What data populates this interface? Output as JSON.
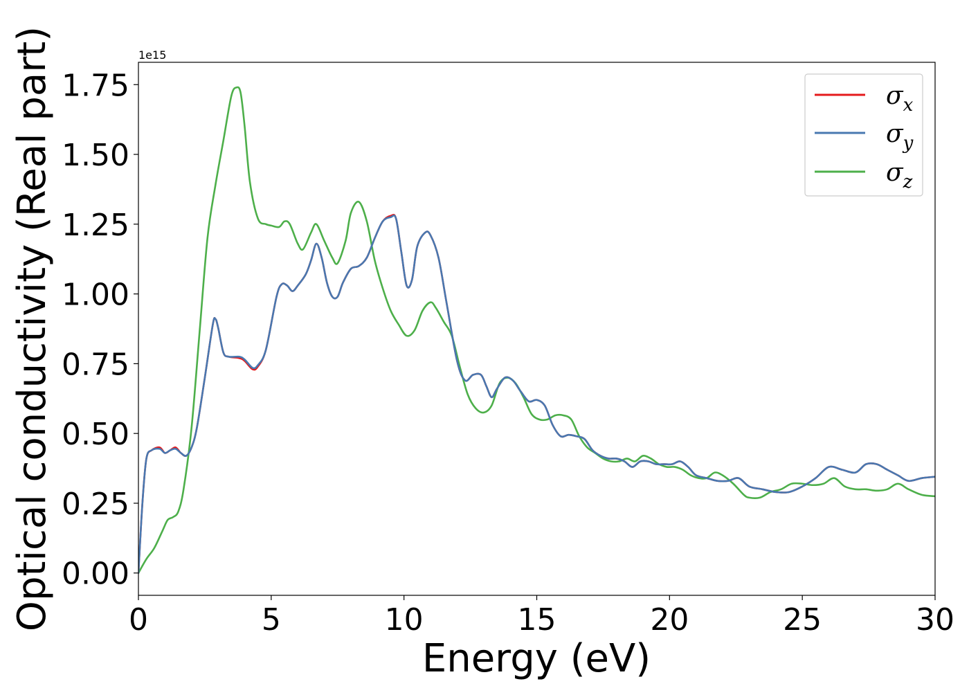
{
  "chart_data": {
    "type": "line",
    "xlabel": "Energy (eV)",
    "ylabel": "Optical conductivity (Real part)",
    "offset_text": "1e15",
    "xlim": [
      0,
      30
    ],
    "ylim": [
      -0.08,
      1.83
    ],
    "xticks": [
      0,
      5,
      10,
      15,
      20,
      25,
      30
    ],
    "xtick_labels": [
      "0",
      "5",
      "10",
      "15",
      "20",
      "25",
      "30"
    ],
    "yticks": [
      0.0,
      0.25,
      0.5,
      0.75,
      1.0,
      1.25,
      1.5,
      1.75
    ],
    "ytick_labels": [
      "0.00",
      "0.25",
      "0.50",
      "0.75",
      "1.00",
      "1.25",
      "1.50",
      "1.75"
    ],
    "grid": false,
    "legend_position": "top-right",
    "series": [
      {
        "name": "σx",
        "color": "#e41a1c",
        "x": [
          0,
          0.15,
          0.3,
          0.5,
          0.8,
          1.0,
          1.2,
          1.4,
          1.6,
          1.8,
          2.0,
          2.2,
          2.5,
          2.8,
          2.9,
          3.0,
          3.2,
          3.4,
          3.8,
          4.0,
          4.3,
          4.5,
          4.8,
          5.2,
          5.4,
          5.6,
          5.8,
          6.0,
          6.3,
          6.5,
          6.7,
          6.9,
          7.1,
          7.3,
          7.5,
          7.7,
          8.0,
          8.3,
          8.6,
          8.9,
          9.2,
          9.5,
          9.7,
          9.9,
          10.1,
          10.3,
          10.5,
          10.8,
          11.0,
          11.3,
          11.6,
          12.0,
          12.3,
          12.6,
          12.9,
          13.1,
          13.3,
          13.5,
          13.8,
          14.1,
          14.4,
          14.7,
          15.0,
          15.3,
          15.6,
          15.9,
          16.2,
          16.5,
          16.8,
          17.1,
          17.4,
          17.7,
          18.0,
          18.3,
          18.6,
          18.9,
          19.2,
          19.5,
          19.8,
          20.1,
          20.4,
          20.7,
          21.0,
          21.4,
          21.8,
          22.2,
          22.6,
          23.0,
          23.5,
          24.0,
          24.5,
          25.0,
          25.5,
          26.0,
          26.5,
          27.0,
          27.4,
          27.8,
          28.2,
          28.6,
          29.0,
          29.5,
          30.0
        ],
        "y": [
          0.0,
          0.25,
          0.41,
          0.44,
          0.45,
          0.43,
          0.44,
          0.45,
          0.43,
          0.42,
          0.45,
          0.52,
          0.7,
          0.89,
          0.91,
          0.88,
          0.79,
          0.775,
          0.77,
          0.76,
          0.73,
          0.74,
          0.8,
          0.99,
          1.035,
          1.03,
          1.01,
          1.03,
          1.07,
          1.12,
          1.18,
          1.13,
          1.04,
          0.99,
          0.99,
          1.04,
          1.09,
          1.1,
          1.13,
          1.2,
          1.26,
          1.28,
          1.27,
          1.15,
          1.03,
          1.05,
          1.17,
          1.22,
          1.21,
          1.13,
          0.97,
          0.76,
          0.69,
          0.71,
          0.71,
          0.67,
          0.63,
          0.66,
          0.7,
          0.69,
          0.65,
          0.615,
          0.62,
          0.6,
          0.53,
          0.49,
          0.495,
          0.49,
          0.48,
          0.44,
          0.42,
          0.41,
          0.41,
          0.4,
          0.38,
          0.4,
          0.4,
          0.39,
          0.39,
          0.39,
          0.4,
          0.38,
          0.35,
          0.34,
          0.33,
          0.33,
          0.34,
          0.31,
          0.3,
          0.29,
          0.29,
          0.31,
          0.34,
          0.38,
          0.37,
          0.36,
          0.39,
          0.39,
          0.37,
          0.35,
          0.33,
          0.34,
          0.345
        ]
      },
      {
        "name": "σy",
        "color": "#4878b0",
        "x": [
          0,
          0.15,
          0.3,
          0.5,
          0.8,
          1.0,
          1.2,
          1.4,
          1.6,
          1.8,
          2.0,
          2.2,
          2.5,
          2.8,
          2.9,
          3.0,
          3.2,
          3.4,
          3.8,
          4.0,
          4.3,
          4.5,
          4.8,
          5.2,
          5.4,
          5.6,
          5.8,
          6.0,
          6.3,
          6.5,
          6.7,
          6.9,
          7.1,
          7.3,
          7.5,
          7.7,
          8.0,
          8.3,
          8.6,
          8.9,
          9.2,
          9.5,
          9.7,
          9.9,
          10.1,
          10.3,
          10.5,
          10.8,
          11.0,
          11.3,
          11.6,
          12.0,
          12.3,
          12.6,
          12.9,
          13.1,
          13.3,
          13.5,
          13.8,
          14.1,
          14.4,
          14.7,
          15.0,
          15.3,
          15.6,
          15.9,
          16.2,
          16.5,
          16.8,
          17.1,
          17.4,
          17.7,
          18.0,
          18.3,
          18.6,
          18.9,
          19.2,
          19.5,
          19.8,
          20.1,
          20.4,
          20.7,
          21.0,
          21.4,
          21.8,
          22.2,
          22.6,
          23.0,
          23.5,
          24.0,
          24.5,
          25.0,
          25.5,
          26.0,
          26.5,
          27.0,
          27.4,
          27.8,
          28.2,
          28.6,
          29.0,
          29.5,
          30.0
        ],
        "y": [
          0.0,
          0.25,
          0.41,
          0.44,
          0.445,
          0.43,
          0.44,
          0.445,
          0.43,
          0.42,
          0.45,
          0.52,
          0.7,
          0.89,
          0.91,
          0.88,
          0.79,
          0.775,
          0.775,
          0.765,
          0.735,
          0.745,
          0.8,
          0.99,
          1.035,
          1.03,
          1.01,
          1.03,
          1.07,
          1.12,
          1.18,
          1.13,
          1.04,
          0.99,
          0.99,
          1.04,
          1.09,
          1.1,
          1.13,
          1.2,
          1.26,
          1.275,
          1.27,
          1.15,
          1.03,
          1.05,
          1.17,
          1.22,
          1.21,
          1.13,
          0.97,
          0.76,
          0.69,
          0.71,
          0.71,
          0.67,
          0.63,
          0.66,
          0.7,
          0.69,
          0.65,
          0.615,
          0.62,
          0.6,
          0.53,
          0.49,
          0.495,
          0.49,
          0.48,
          0.44,
          0.42,
          0.41,
          0.41,
          0.4,
          0.38,
          0.4,
          0.4,
          0.39,
          0.39,
          0.39,
          0.4,
          0.38,
          0.35,
          0.34,
          0.33,
          0.33,
          0.34,
          0.31,
          0.3,
          0.29,
          0.29,
          0.31,
          0.34,
          0.38,
          0.37,
          0.36,
          0.39,
          0.39,
          0.37,
          0.35,
          0.33,
          0.34,
          0.345
        ]
      },
      {
        "name": "σz",
        "color": "#4daf4a",
        "x": [
          0,
          0.3,
          0.6,
          0.9,
          1.1,
          1.3,
          1.5,
          1.7,
          2.0,
          2.3,
          2.6,
          2.9,
          3.2,
          3.5,
          3.7,
          3.85,
          4.0,
          4.2,
          4.5,
          4.8,
          5.0,
          5.3,
          5.5,
          5.7,
          6.0,
          6.2,
          6.5,
          6.7,
          7.0,
          7.3,
          7.5,
          7.8,
          8.0,
          8.3,
          8.6,
          8.9,
          9.2,
          9.5,
          9.8,
          10.1,
          10.4,
          10.7,
          11.0,
          11.2,
          11.5,
          11.8,
          12.1,
          12.4,
          12.7,
          13.0,
          13.3,
          13.6,
          13.9,
          14.2,
          14.5,
          14.8,
          15.1,
          15.4,
          15.7,
          16.0,
          16.3,
          16.6,
          16.9,
          17.2,
          17.5,
          17.8,
          18.1,
          18.4,
          18.7,
          19.0,
          19.3,
          19.6,
          19.9,
          20.2,
          20.5,
          20.8,
          21.1,
          21.4,
          21.7,
          22.0,
          22.4,
          22.8,
          23.0,
          23.4,
          23.8,
          24.2,
          24.6,
          25.0,
          25.4,
          25.8,
          26.2,
          26.6,
          27.0,
          27.4,
          27.8,
          28.2,
          28.6,
          29.0,
          29.5,
          30.0
        ],
        "y": [
          0.0,
          0.05,
          0.09,
          0.15,
          0.19,
          0.2,
          0.22,
          0.3,
          0.52,
          0.86,
          1.2,
          1.39,
          1.55,
          1.71,
          1.74,
          1.72,
          1.6,
          1.4,
          1.27,
          1.25,
          1.245,
          1.24,
          1.26,
          1.25,
          1.18,
          1.16,
          1.22,
          1.25,
          1.19,
          1.13,
          1.11,
          1.19,
          1.29,
          1.33,
          1.26,
          1.12,
          1.02,
          0.94,
          0.89,
          0.85,
          0.87,
          0.94,
          0.97,
          0.95,
          0.9,
          0.85,
          0.74,
          0.64,
          0.59,
          0.575,
          0.6,
          0.68,
          0.7,
          0.68,
          0.63,
          0.57,
          0.55,
          0.55,
          0.565,
          0.565,
          0.55,
          0.49,
          0.45,
          0.43,
          0.41,
          0.4,
          0.4,
          0.41,
          0.4,
          0.42,
          0.41,
          0.39,
          0.38,
          0.38,
          0.37,
          0.35,
          0.34,
          0.34,
          0.36,
          0.35,
          0.32,
          0.28,
          0.27,
          0.27,
          0.29,
          0.3,
          0.32,
          0.32,
          0.315,
          0.32,
          0.34,
          0.31,
          0.3,
          0.3,
          0.295,
          0.3,
          0.32,
          0.3,
          0.28,
          0.275
        ]
      }
    ]
  }
}
